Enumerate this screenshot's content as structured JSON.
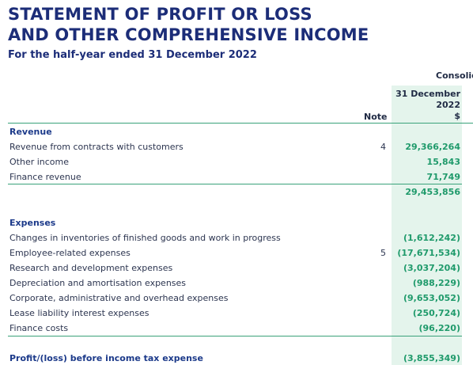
{
  "header": {
    "title_lines": [
      "STATEMENT OF PROFIT OR LOSS",
      "AND OTHER COMPREHENSIVE INCOME"
    ],
    "subtitle": "For the half-year ended 31 December 2022"
  },
  "table": {
    "group_header": "Consolid",
    "note_header": "Note",
    "period_lines": [
      "31 December",
      "2022",
      "$"
    ],
    "rows": [
      {
        "label": "Revenue"
      },
      {
        "label": "Revenue from contracts with customers",
        "note": "4",
        "amount": "29,366,264"
      },
      {
        "label": "Other income",
        "amount": "15,843"
      },
      {
        "label": "Finance revenue",
        "amount": "71,749"
      },
      {
        "amount": "29,453,856"
      },
      {
        "label": "Expenses"
      },
      {
        "label": "Changes in inventories of finished goods and work in progress",
        "amount": "(1,612,242)"
      },
      {
        "label": "Employee-related expenses",
        "note": "5",
        "amount": "(17,671,534)"
      },
      {
        "label": "Research and development expenses",
        "amount": "(3,037,204)"
      },
      {
        "label": "Depreciation and amortisation expenses",
        "amount": "(988,229)"
      },
      {
        "label": "Corporate, administrative and overhead expenses",
        "amount": "(9,653,052)"
      },
      {
        "label": "Lease liability interest expenses",
        "amount": "(250,724)"
      },
      {
        "label": "Finance costs",
        "amount": "(96,220)"
      },
      {
        "label": "Profit/(loss) before income tax expense",
        "amount": "(3,855,349)"
      }
    ]
  }
}
